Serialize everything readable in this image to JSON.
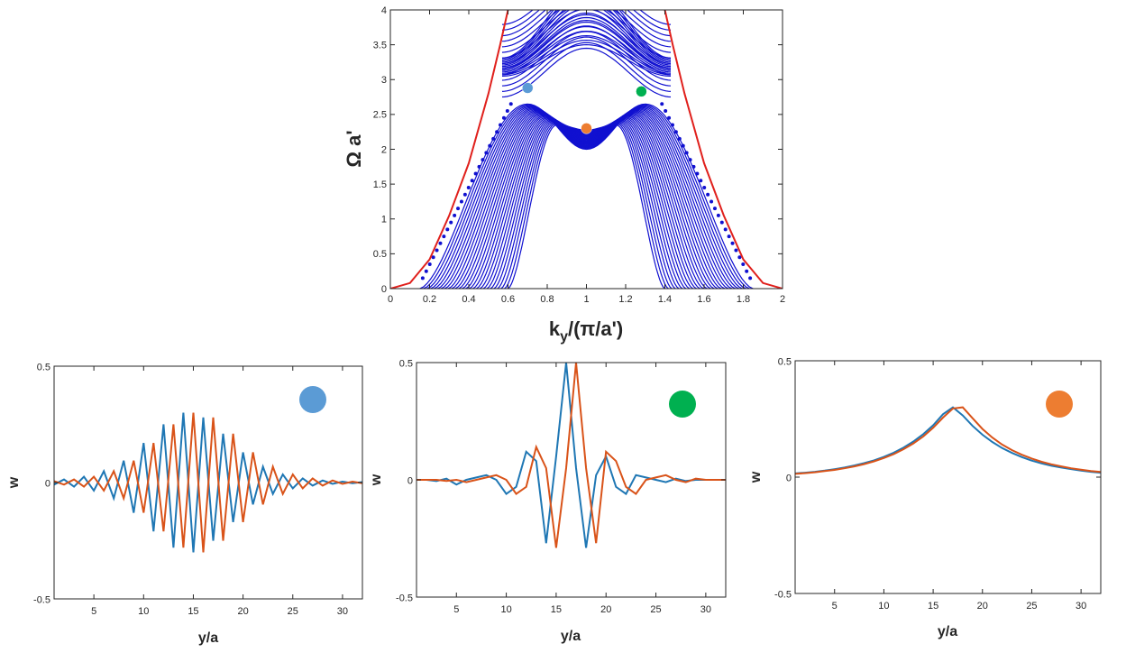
{
  "chart_data": [
    {
      "type": "line",
      "title": "",
      "xlabel": "k_y/(π/a')",
      "xlabel_parts": {
        "main": "k",
        "sub": "y",
        "rest": "/(π/a')"
      },
      "ylabel": "Ω a'",
      "xlim": [
        0,
        2
      ],
      "ylim": [
        0,
        4
      ],
      "xticks": [
        0,
        0.2,
        0.4,
        0.6,
        0.8,
        1,
        1.2,
        1.4,
        1.6,
        1.8,
        2
      ],
      "xtick_labels": [
        "0",
        "0.2",
        "0.4",
        "0.6",
        "0.8",
        "1",
        "1.2",
        "1.4",
        "1.6",
        "1.8",
        "2"
      ],
      "yticks": [
        0,
        0.5,
        1,
        1.5,
        2,
        2.5,
        3,
        3.5,
        4
      ],
      "ytick_labels": [
        "0",
        "0.5",
        "1",
        "1.5",
        "2",
        "2.5",
        "3",
        "3.5",
        "4"
      ],
      "band_color": "#1010d0",
      "light_cone_color": "#e0201c",
      "lower_band_count": 26,
      "upper_band_count": 14,
      "band_spacing_dk": 0.018,
      "light_cone": {
        "name": "light cone",
        "x": [
          0,
          0.1,
          0.2,
          0.3,
          0.4,
          0.5,
          0.56,
          0.6
        ],
        "y": [
          0,
          0.08,
          0.42,
          1.05,
          1.8,
          2.8,
          3.5,
          4.0
        ]
      },
      "markers": [
        {
          "name": "blue mode",
          "x": 0.7,
          "y": 2.88,
          "color": "#5b9bd5"
        },
        {
          "name": "green mode",
          "x": 1.28,
          "y": 2.83,
          "color": "#00b050"
        },
        {
          "name": "orange mode",
          "x": 1.0,
          "y": 2.3,
          "color": "#ed7d31"
        }
      ]
    },
    {
      "type": "line",
      "title": "",
      "xlabel": "y/a",
      "ylabel": "w",
      "xlim": [
        1,
        32
      ],
      "ylim": [
        -0.5,
        0.5
      ],
      "xticks": [
        5,
        10,
        15,
        20,
        25,
        30
      ],
      "xtick_labels": [
        "5",
        "10",
        "15",
        "20",
        "25",
        "30"
      ],
      "yticks": [
        -0.5,
        0,
        0.5
      ],
      "ytick_labels": [
        "-0.5",
        "0",
        "0.5"
      ],
      "marker_color": "#5b9bd5",
      "series": [
        {
          "name": "series 1",
          "color": "#1f77b4",
          "x": [
            1,
            2,
            3,
            4,
            5,
            6,
            7,
            8,
            9,
            10,
            11,
            12,
            13,
            14,
            15,
            16,
            17,
            18,
            19,
            20,
            21,
            22,
            23,
            24,
            25,
            26,
            27,
            28,
            29,
            30,
            31,
            32
          ],
          "y": [
            -0.009,
            0.013,
            -0.018,
            0.025,
            -0.035,
            0.049,
            -0.068,
            0.094,
            -0.13,
            0.17,
            -0.21,
            0.25,
            -0.28,
            0.3,
            -0.3,
            0.28,
            -0.25,
            0.21,
            -0.17,
            0.13,
            -0.094,
            0.068,
            -0.049,
            0.035,
            -0.025,
            0.018,
            -0.013,
            0.009,
            -0.006,
            0.004,
            -0.003,
            0.002
          ]
        },
        {
          "name": "series 2",
          "color": "#d95319",
          "x": [
            1,
            2,
            3,
            4,
            5,
            6,
            7,
            8,
            9,
            10,
            11,
            12,
            13,
            14,
            15,
            16,
            17,
            18,
            19,
            20,
            21,
            22,
            23,
            24,
            25,
            26,
            27,
            28,
            29,
            30,
            31,
            32
          ],
          "y": [
            0.006,
            -0.009,
            0.013,
            -0.018,
            0.025,
            -0.035,
            0.049,
            -0.068,
            0.094,
            -0.13,
            0.17,
            -0.21,
            0.25,
            -0.28,
            0.3,
            -0.3,
            0.28,
            -0.25,
            0.21,
            -0.17,
            0.13,
            -0.094,
            0.068,
            -0.049,
            0.035,
            -0.025,
            0.018,
            -0.013,
            0.009,
            -0.006,
            0.004,
            -0.003
          ]
        }
      ]
    },
    {
      "type": "line",
      "title": "",
      "xlabel": "y/a",
      "ylabel": "w",
      "xlim": [
        1,
        32
      ],
      "ylim": [
        -0.5,
        0.5
      ],
      "xticks": [
        5,
        10,
        15,
        20,
        25,
        30
      ],
      "xtick_labels": [
        "5",
        "10",
        "15",
        "20",
        "25",
        "30"
      ],
      "yticks": [
        -0.5,
        0,
        0.5
      ],
      "ytick_labels": [
        "-0.5",
        "0",
        "0.5"
      ],
      "marker_color": "#00b050",
      "series": [
        {
          "name": "series 1",
          "color": "#1f77b4",
          "x": [
            1,
            2,
            3,
            4,
            5,
            6,
            7,
            8,
            9,
            10,
            11,
            12,
            13,
            14,
            15,
            16,
            17,
            18,
            19,
            20,
            21,
            22,
            23,
            24,
            25,
            26,
            27,
            28,
            29,
            30,
            31,
            32
          ],
          "y": [
            0,
            0,
            -0.005,
            0.005,
            -0.02,
            0,
            0.01,
            0.02,
            0,
            -0.06,
            -0.03,
            0.12,
            0.08,
            -0.27,
            0.1,
            0.5,
            0.05,
            -0.29,
            0.02,
            0.1,
            -0.03,
            -0.06,
            0.02,
            0.01,
            0,
            -0.01,
            0.005,
            -0.005,
            0,
            0,
            0,
            0
          ]
        },
        {
          "name": "series 2",
          "color": "#d95319",
          "x": [
            1,
            2,
            3,
            4,
            5,
            6,
            7,
            8,
            9,
            10,
            11,
            12,
            13,
            14,
            15,
            16,
            17,
            18,
            19,
            20,
            21,
            22,
            23,
            24,
            25,
            26,
            27,
            28,
            29,
            30,
            31,
            32
          ],
          "y": [
            0,
            0,
            0,
            -0.005,
            0,
            -0.01,
            0,
            0.01,
            0.02,
            0,
            -0.06,
            -0.03,
            0.14,
            0.05,
            -0.29,
            0.05,
            0.5,
            0.05,
            -0.27,
            0.12,
            0.08,
            -0.03,
            -0.06,
            0,
            0.01,
            0.02,
            0,
            -0.01,
            0.005,
            0,
            0,
            0
          ]
        }
      ]
    },
    {
      "type": "line",
      "title": "",
      "xlabel": "y/a",
      "ylabel": "w",
      "xlim": [
        1,
        32
      ],
      "ylim": [
        -0.5,
        0.5
      ],
      "xticks": [
        5,
        10,
        15,
        20,
        25,
        30
      ],
      "xtick_labels": [
        "5",
        "10",
        "15",
        "20",
        "25",
        "30"
      ],
      "yticks": [
        -0.5,
        0,
        0.5
      ],
      "ytick_labels": [
        "-0.5",
        "0",
        "0.5"
      ],
      "marker_color": "#ed7d31",
      "series": [
        {
          "name": "series 1",
          "color": "#1f77b4",
          "x": [
            1,
            2,
            3,
            4,
            5,
            6,
            7,
            8,
            9,
            10,
            11,
            12,
            13,
            14,
            15,
            16,
            17,
            18,
            19,
            20,
            21,
            22,
            23,
            24,
            25,
            26,
            27,
            28,
            29,
            30,
            31,
            32
          ],
          "y": [
            0.016,
            0.019,
            0.023,
            0.028,
            0.034,
            0.041,
            0.05,
            0.06,
            0.072,
            0.087,
            0.105,
            0.127,
            0.153,
            0.185,
            0.223,
            0.27,
            0.3,
            0.265,
            0.22,
            0.182,
            0.151,
            0.125,
            0.104,
            0.086,
            0.071,
            0.059,
            0.049,
            0.041,
            0.034,
            0.028,
            0.023,
            0.019
          ]
        },
        {
          "name": "series 2",
          "color": "#d95319",
          "x": [
            1,
            2,
            3,
            4,
            5,
            6,
            7,
            8,
            9,
            10,
            11,
            12,
            13,
            14,
            15,
            16,
            17,
            18,
            19,
            20,
            21,
            22,
            23,
            24,
            25,
            26,
            27,
            28,
            29,
            30,
            31,
            32
          ],
          "y": [
            0.014,
            0.017,
            0.021,
            0.026,
            0.031,
            0.038,
            0.046,
            0.056,
            0.068,
            0.082,
            0.099,
            0.12,
            0.145,
            0.175,
            0.212,
            0.256,
            0.295,
            0.3,
            0.253,
            0.207,
            0.17,
            0.14,
            0.116,
            0.096,
            0.08,
            0.066,
            0.055,
            0.046,
            0.038,
            0.032,
            0.026,
            0.022
          ]
        }
      ]
    }
  ]
}
